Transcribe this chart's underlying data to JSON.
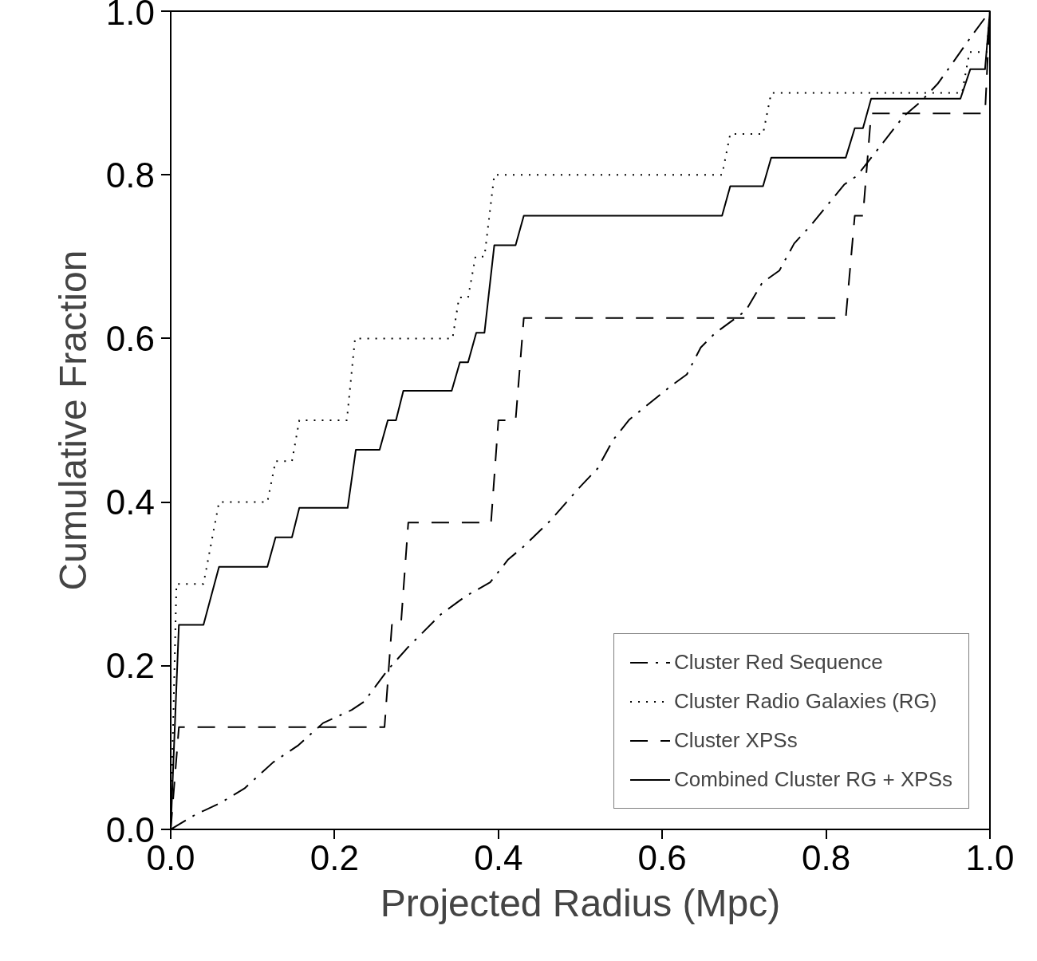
{
  "chart_data": {
    "type": "line",
    "xlabel": "Projected Radius (Mpc)",
    "ylabel": "Cumulative Fraction",
    "xlim": [
      0,
      1
    ],
    "ylim": [
      0,
      1
    ],
    "xticks": [
      {
        "value": 0,
        "label": "0.0"
      },
      0.2,
      0.4,
      0.6,
      0.8,
      {
        "value": 1,
        "label": "1.0"
      }
    ],
    "yticks": [
      {
        "value": 0,
        "label": "0.0"
      },
      0.2,
      0.4,
      0.6,
      0.8,
      {
        "value": 1,
        "label": "1.0"
      }
    ],
    "grid": false,
    "legend": "bottom right",
    "marker": "none",
    "series": [
      {
        "name": "Cluster Red Sequence",
        "color": "#000000",
        "line_style": "dashdot",
        "x": [
          0,
          0.03,
          0.06,
          0.09,
          0.125,
          0.156,
          0.186,
          0.221,
          0.236,
          0.265,
          0.29,
          0.33,
          0.36,
          0.39,
          0.412,
          0.43,
          0.464,
          0.5,
          0.521,
          0.54,
          0.56,
          0.612,
          0.63,
          0.647,
          0.664,
          0.702,
          0.722,
          0.743,
          0.761,
          0.782,
          0.822,
          0.838,
          0.863,
          0.895,
          0.915,
          0.936,
          0.954,
          0.975,
          1.0
        ],
        "values": [
          0,
          0.018,
          0.032,
          0.05,
          0.082,
          0.103,
          0.13,
          0.146,
          0.156,
          0.195,
          0.223,
          0.263,
          0.285,
          0.302,
          0.33,
          0.345,
          0.378,
          0.419,
          0.441,
          0.476,
          0.501,
          0.543,
          0.556,
          0.589,
          0.606,
          0.634,
          0.668,
          0.683,
          0.716,
          0.739,
          0.788,
          0.799,
          0.831,
          0.872,
          0.889,
          0.911,
          0.936,
          0.966,
          1.0
        ]
      },
      {
        "name": "Cluster Radio Galaxies (RG)",
        "color": "#000000",
        "line_style": "dotted",
        "x": [
          0,
          0.007,
          0.04,
          0.059,
          0.118,
          0.128,
          0.148,
          0.157,
          0.215,
          0.225,
          0.344,
          0.352,
          0.363,
          0.372,
          0.383,
          0.395,
          0.673,
          0.683,
          0.723,
          0.733,
          0.966,
          0.975,
          0.996,
          1.0
        ],
        "values": [
          0,
          0.3,
          0.3,
          0.4,
          0.4,
          0.45,
          0.45,
          0.5,
          0.5,
          0.6,
          0.6,
          0.65,
          0.65,
          0.7,
          0.7,
          0.8,
          0.8,
          0.85,
          0.85,
          0.9,
          0.9,
          0.95,
          0.95,
          1.0
        ]
      },
      {
        "name": "Cluster XPSs",
        "color": "#000000",
        "line_style": "dashed",
        "x": [
          0,
          0.01,
          0.261,
          0.27,
          0.281,
          0.29,
          0.391,
          0.4,
          0.421,
          0.431,
          0.824,
          0.835,
          0.845,
          0.855,
          0.994,
          1.0
        ],
        "values": [
          0,
          0.125,
          0.125,
          0.25,
          0.25,
          0.375,
          0.375,
          0.5,
          0.5,
          0.625,
          0.625,
          0.75,
          0.75,
          0.875,
          0.875,
          1.0
        ]
      },
      {
        "name": "Combined Cluster RG + XPSs",
        "color": "#000000",
        "line_style": "solid",
        "x": [
          0,
          0.01,
          0.04,
          0.059,
          0.118,
          0.128,
          0.148,
          0.157,
          0.216,
          0.226,
          0.255,
          0.265,
          0.275,
          0.284,
          0.343,
          0.353,
          0.363,
          0.373,
          0.383,
          0.395,
          0.421,
          0.431,
          0.673,
          0.683,
          0.723,
          0.733,
          0.824,
          0.835,
          0.845,
          0.855,
          0.964,
          0.976,
          0.994,
          1.0
        ],
        "values": [
          0,
          0.25,
          0.25,
          0.321,
          0.321,
          0.357,
          0.357,
          0.393,
          0.393,
          0.464,
          0.464,
          0.5,
          0.5,
          0.536,
          0.536,
          0.571,
          0.571,
          0.607,
          0.607,
          0.714,
          0.714,
          0.75,
          0.75,
          0.786,
          0.786,
          0.821,
          0.821,
          0.857,
          0.857,
          0.893,
          0.893,
          0.929,
          0.929,
          1.0
        ]
      }
    ]
  }
}
